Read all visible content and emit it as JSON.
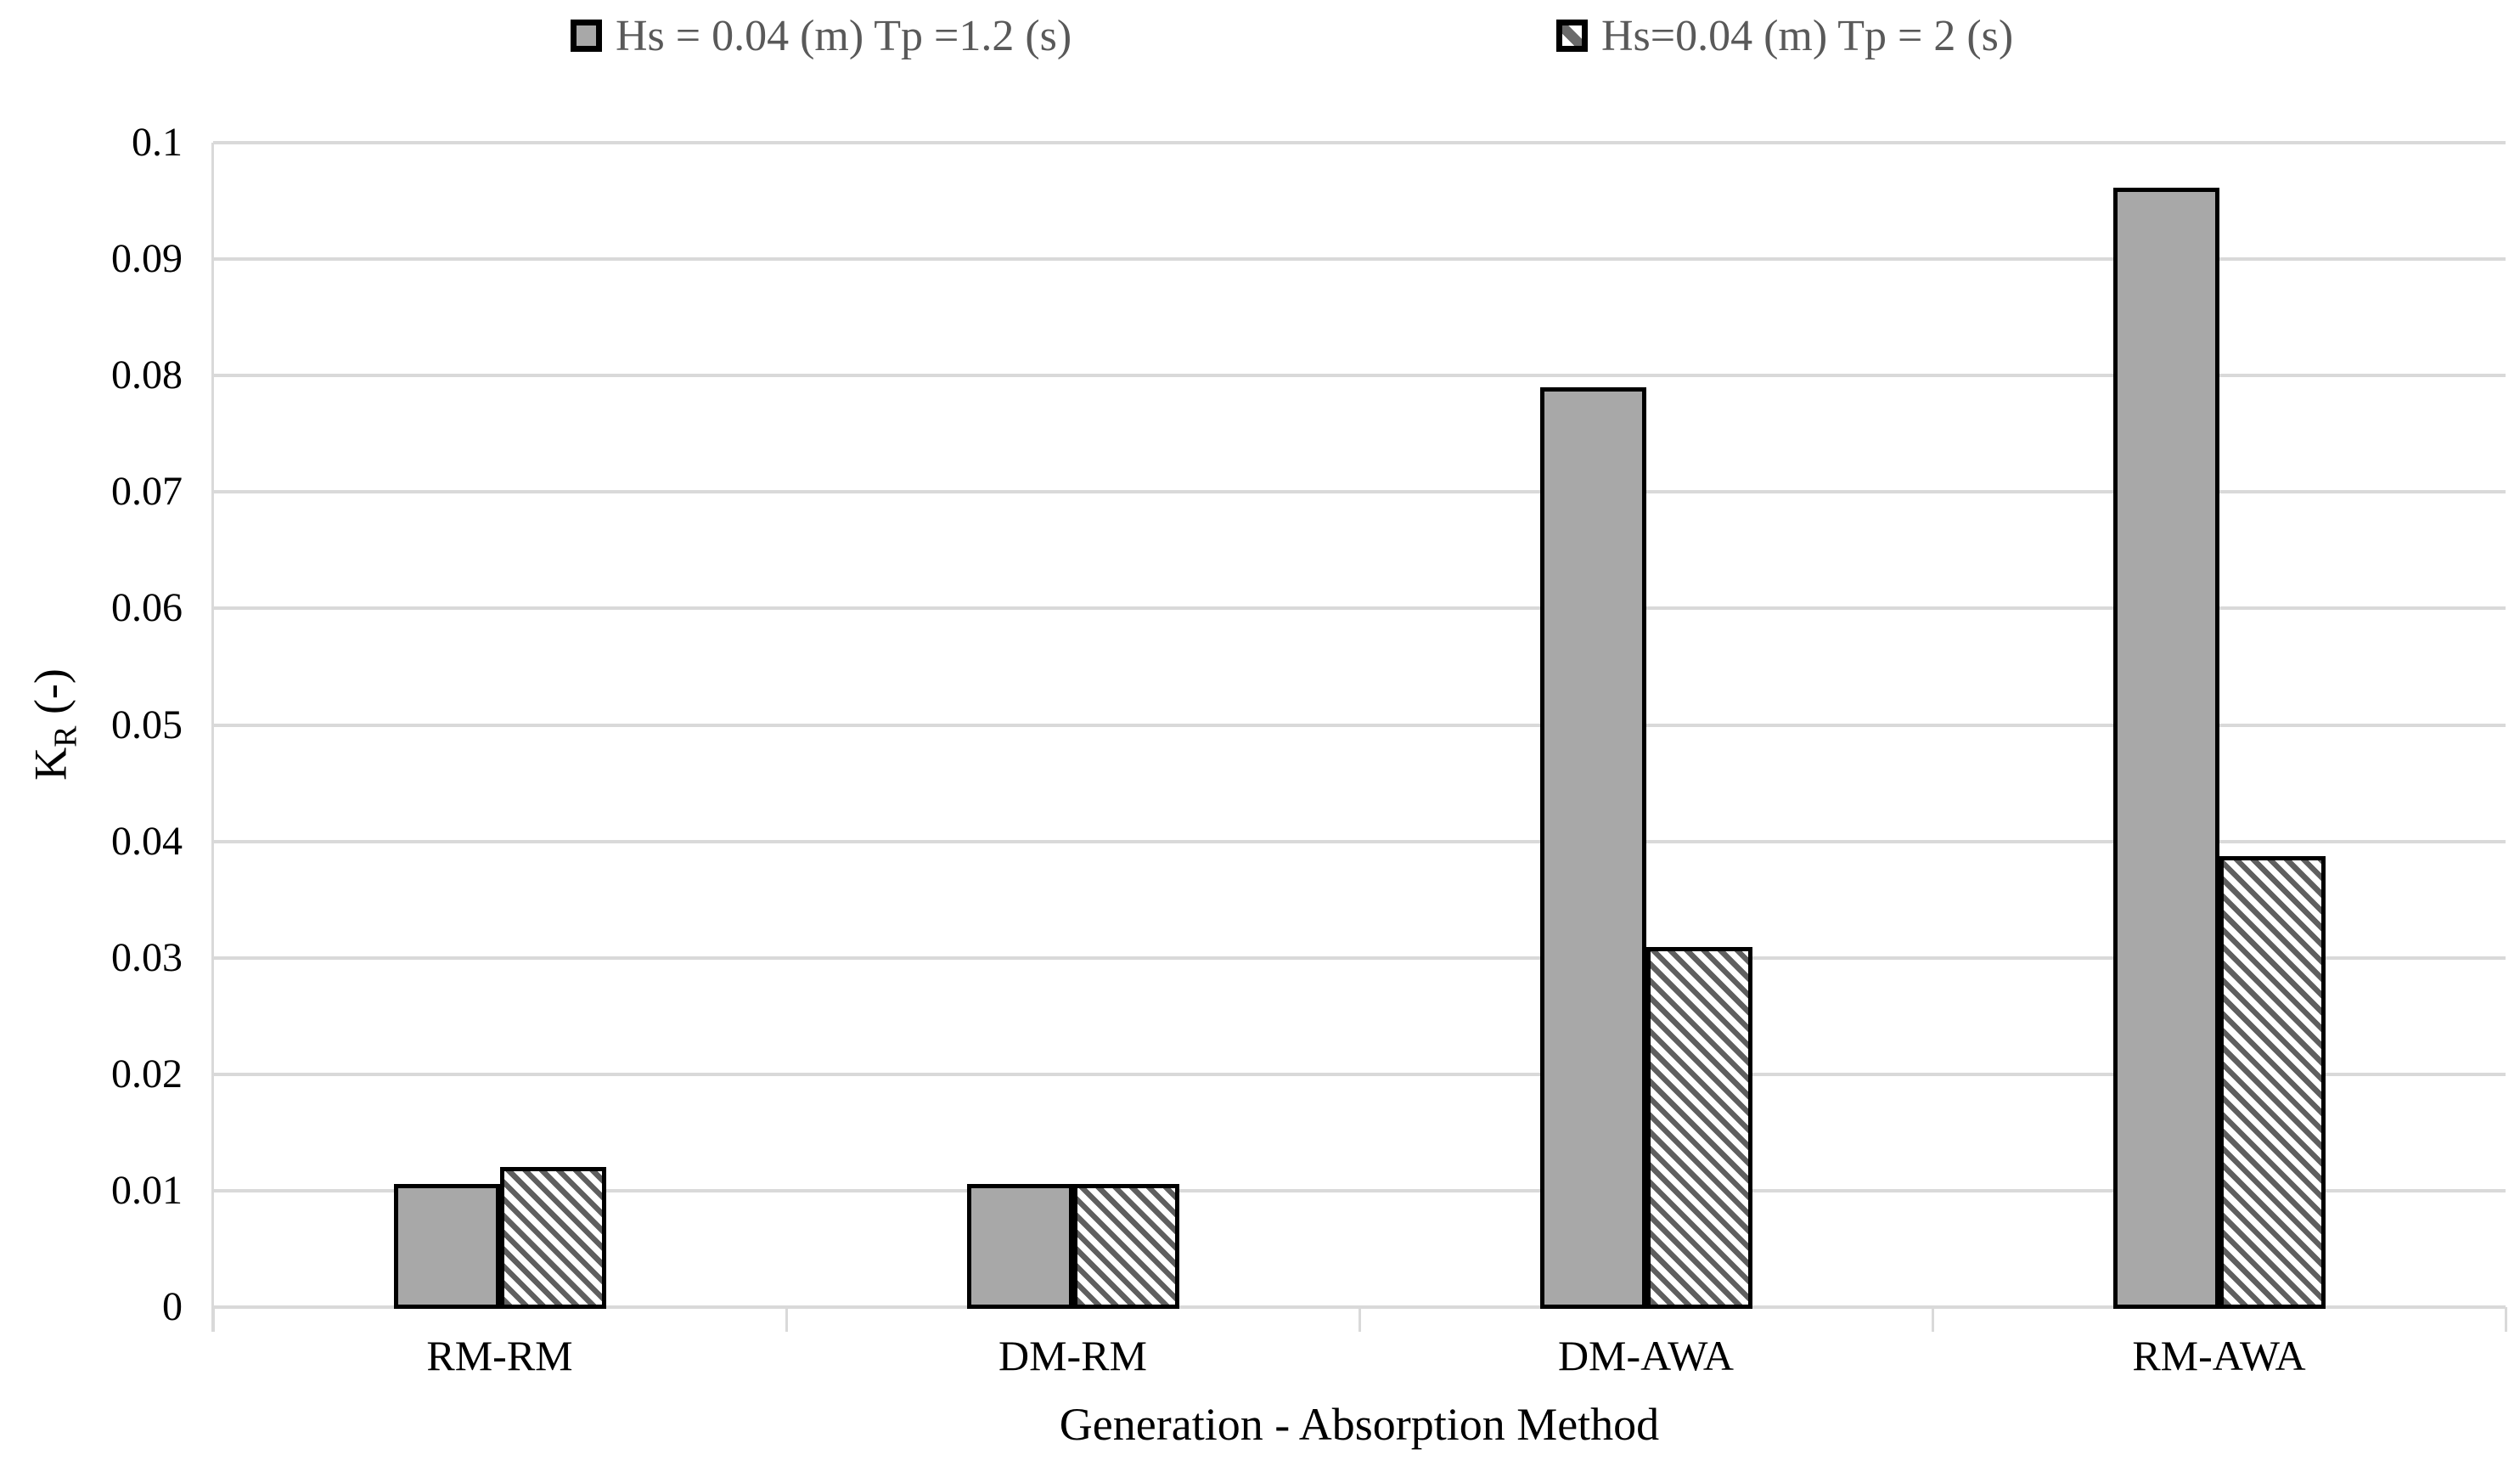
{
  "chart_data": {
    "type": "bar",
    "title": "",
    "categories": [
      "RM-RM",
      "DM-RM",
      "DM-AWA",
      "RM-AWA"
    ],
    "series": [
      {
        "name": "Hs = 0.04 (m) Tp =1.2 (s)",
        "style": "solid-gray",
        "values": [
          0.0106,
          0.0106,
          0.079,
          0.0961
        ]
      },
      {
        "name": "Hs=0.04 (m) Tp = 2 (s)",
        "style": "diagonal-hatch",
        "values": [
          0.012,
          0.0106,
          0.0309,
          0.0387
        ]
      }
    ],
    "xlabel": "Generation - Absorption Method",
    "ylabel": "K_R (-)",
    "ylabel_parts": {
      "main": "K",
      "sub": "R",
      "rest": " (-)"
    },
    "ylim": [
      0,
      0.1
    ],
    "ytick_step": 0.01,
    "yticks": [
      0,
      0.01,
      0.02,
      0.03,
      0.04,
      0.05,
      0.06,
      0.07,
      0.08,
      0.09,
      0.1
    ],
    "ytick_labels": [
      "0",
      "0.01",
      "0.02",
      "0.03",
      "0.04",
      "0.05",
      "0.06",
      "0.07",
      "0.08",
      "0.09",
      "0.1"
    ],
    "grid": true,
    "legend_position": "top"
  },
  "colors": {
    "bar_fill_gray": "#a8a8a8",
    "bar_border": "#000000",
    "hatch_stripe": "#5f5f5f",
    "hatch_background": "#ffffff",
    "gridline": "#d9d9d9",
    "axis_line": "#d9d9d9",
    "tick_label_color": "#000000",
    "legend_text_color": "#595959",
    "background": "#ffffff"
  }
}
